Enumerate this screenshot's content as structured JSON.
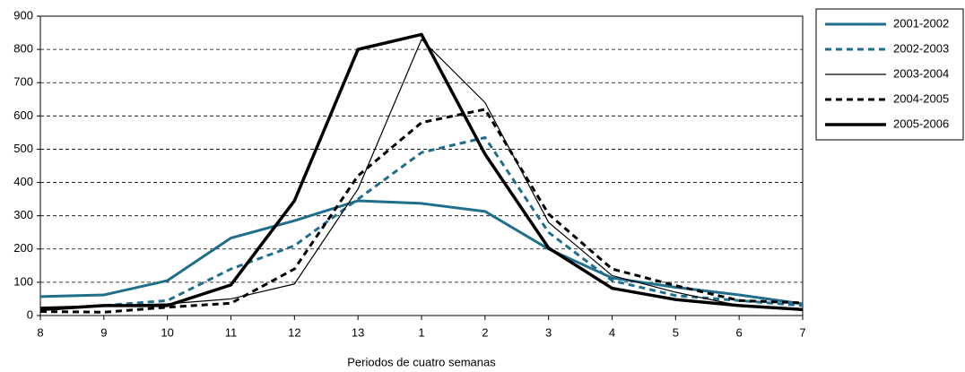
{
  "chart_data": {
    "type": "line",
    "x_label": "Periodos de cuatro semanas",
    "categories": [
      "8",
      "9",
      "10",
      "11",
      "12",
      "13",
      "1",
      "2",
      "3",
      "4",
      "5",
      "6",
      "7"
    ],
    "series": [
      {
        "name": "2001-2002",
        "color": "#1f6e8c",
        "dashed": false,
        "line_width": 3,
        "values": [
          57,
          62,
          105,
          233,
          285,
          345,
          337,
          313,
          200,
          113,
          85,
          62,
          35
        ]
      },
      {
        "name": "2002-2003",
        "color": "#1f6e8c",
        "dashed": true,
        "line_width": 3,
        "values": [
          20,
          30,
          45,
          140,
          210,
          350,
          490,
          535,
          250,
          105,
          60,
          45,
          30
        ]
      },
      {
        "name": "2003-2004",
        "color": "#000000",
        "dashed": false,
        "line_width": 1.2,
        "values": [
          25,
          30,
          35,
          50,
          95,
          380,
          830,
          640,
          280,
          120,
          70,
          30,
          20
        ]
      },
      {
        "name": "2004-2005",
        "color": "#000000",
        "dashed": true,
        "line_width": 3,
        "values": [
          12,
          10,
          25,
          37,
          140,
          420,
          580,
          620,
          305,
          140,
          90,
          45,
          38
        ]
      },
      {
        "name": "2005-2006",
        "color": "#000000",
        "dashed": false,
        "line_width": 3.5,
        "values": [
          18,
          30,
          30,
          92,
          345,
          800,
          845,
          485,
          203,
          82,
          48,
          30,
          18
        ]
      }
    ],
    "ylim": [
      0,
      900
    ],
    "yticks": [
      0,
      100,
      200,
      300,
      400,
      500,
      600,
      700,
      800,
      900
    ],
    "grid": true,
    "legend": "top-right"
  }
}
